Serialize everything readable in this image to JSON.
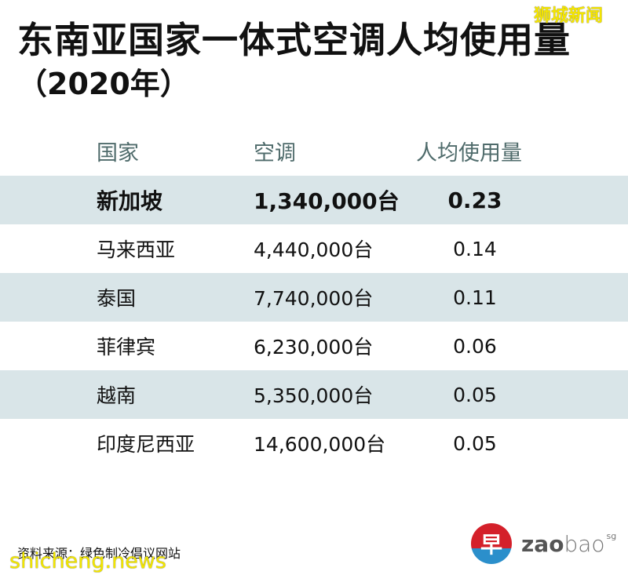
{
  "title": "东南亚国家一体式空调人均使用量",
  "subtitle": "（2020年）",
  "watermark_top": "狮城新闻",
  "watermark_bottom": "shicheng.news",
  "table": {
    "headers": [
      "国家",
      "空调",
      "人均使用量"
    ],
    "rows": [
      {
        "country": "新加坡",
        "units": "1,340,000台",
        "per_capita": "0.23",
        "highlight": true
      },
      {
        "country": "马来西亚",
        "units": "4,440,000台",
        "per_capita": "0.14"
      },
      {
        "country": "泰国",
        "units": "7,740,000台",
        "per_capita": "0.11"
      },
      {
        "country": "菲律宾",
        "units": "6,230,000台",
        "per_capita": "0.06"
      },
      {
        "country": "越南",
        "units": "5,350,000台",
        "per_capita": "0.05"
      },
      {
        "country": "印度尼西亚",
        "units": "14,600,000台",
        "per_capita": "0.05"
      }
    ]
  },
  "source": "资料来源：绿色制冷倡议网站",
  "logo": {
    "glyph": "早",
    "bold": "zao",
    "light": "bao",
    "suffix": "sg"
  },
  "colors": {
    "row_shade": "#d9e5e8",
    "header_text": "#4f6b6b",
    "logo_red": "#d4202a",
    "logo_blue": "#2b8fcb"
  },
  "chart_data": {
    "type": "table",
    "title": "东南亚国家一体式空调人均使用量（2020年）",
    "columns": [
      "国家",
      "空调",
      "人均使用量"
    ],
    "categories": [
      "新加坡",
      "马来西亚",
      "泰国",
      "菲律宾",
      "越南",
      "印度尼西亚"
    ],
    "series": [
      {
        "name": "空调（台）",
        "values": [
          1340000,
          4440000,
          7740000,
          6230000,
          5350000,
          14600000
        ]
      },
      {
        "name": "人均使用量",
        "values": [
          0.23,
          0.14,
          0.11,
          0.06,
          0.05,
          0.05
        ]
      }
    ],
    "source": "资料来源：绿色制冷倡议网站"
  }
}
